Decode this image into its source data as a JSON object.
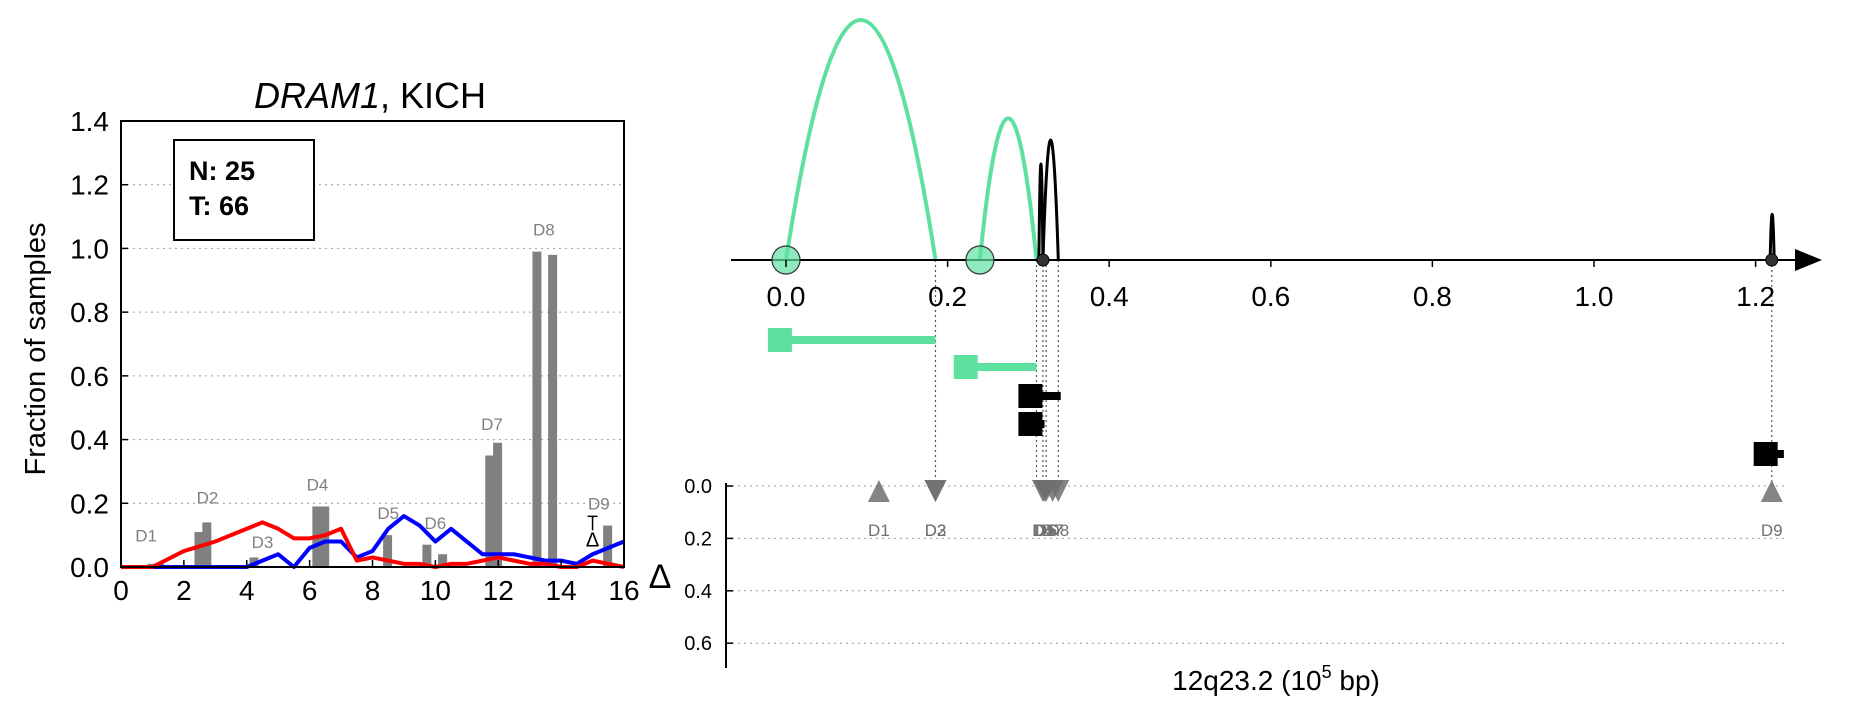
{
  "chart_data": [
    {
      "type": "bar",
      "title_gene": "DRAM1",
      "title_rest": ", KICH",
      "xlabel": "",
      "ylabel": "Fraction of samples",
      "xlim": [
        0,
        16
      ],
      "ylim": [
        0,
        1.4
      ],
      "x_ticks": [
        "0",
        "2",
        "4",
        "6",
        "8",
        "10",
        "12",
        "14",
        "16"
      ],
      "y_ticks": [
        "0.0",
        "0.2",
        "0.4",
        "0.6",
        "0.8",
        "1.0",
        "1.2",
        "1.4"
      ],
      "grid": "horizontal dotted",
      "stats_box": {
        "n_label": "N: 25",
        "t_label": "T: 66"
      },
      "bars": [
        {
          "x": 0.98,
          "value": 0.01
        },
        {
          "x": 1.23,
          "value": 0.01
        },
        {
          "x": 2.48,
          "value": 0.11
        },
        {
          "x": 2.73,
          "value": 0.14
        },
        {
          "x": 4.23,
          "value": 0.03
        },
        {
          "x": 6.23,
          "value": 0.19
        },
        {
          "x": 6.48,
          "value": 0.19
        },
        {
          "x": 8.48,
          "value": 0.1
        },
        {
          "x": 9.73,
          "value": 0.07
        },
        {
          "x": 10.23,
          "value": 0.04
        },
        {
          "x": 11.73,
          "value": 0.35
        },
        {
          "x": 11.98,
          "value": 0.39
        },
        {
          "x": 13.23,
          "value": 0.99
        },
        {
          "x": 13.73,
          "value": 0.98
        },
        {
          "x": 15.48,
          "value": 0.13
        }
      ],
      "bar_labels": [
        {
          "text": "D1",
          "x": 0.8,
          "y": 0.08
        },
        {
          "text": "D2",
          "x": 2.75,
          "y": 0.2
        },
        {
          "text": "D3",
          "x": 4.5,
          "y": 0.06
        },
        {
          "text": "D4",
          "x": 6.25,
          "y": 0.24
        },
        {
          "text": "D5",
          "x": 8.5,
          "y": 0.15
        },
        {
          "text": "D6",
          "x": 10.0,
          "y": 0.12
        },
        {
          "text": "D7",
          "x": 11.8,
          "y": 0.43
        },
        {
          "text": "D8",
          "x": 13.45,
          "y": 1.04
        },
        {
          "text": "D9",
          "x": 15.2,
          "y": 0.18
        }
      ],
      "delta_marker": {
        "text": "Δ",
        "x": 15.0,
        "y": 0.09
      },
      "series": [
        {
          "color": "#0000ff",
          "x": [
            0,
            1,
            2,
            3,
            4,
            4.5,
            5,
            5.5,
            6,
            6.5,
            7,
            7.5,
            8,
            8.5,
            9,
            9.5,
            10,
            10.5,
            11,
            11.5,
            12,
            12.5,
            13,
            13.5,
            14,
            14.5,
            15,
            15.5,
            16
          ],
          "y": [
            0,
            0,
            0,
            0,
            0,
            0.02,
            0.04,
            0.0,
            0.06,
            0.08,
            0.08,
            0.03,
            0.05,
            0.12,
            0.16,
            0.13,
            0.08,
            0.12,
            0.08,
            0.04,
            0.04,
            0.04,
            0.03,
            0.02,
            0.02,
            0.01,
            0.04,
            0.06,
            0.08
          ]
        },
        {
          "color": "#ff0000",
          "x": [
            0,
            1,
            2,
            3,
            4,
            4.5,
            5,
            5.5,
            6,
            6.5,
            7,
            7.5,
            8,
            8.5,
            9,
            9.5,
            10,
            10.5,
            11,
            11.5,
            12,
            12.5,
            13,
            13.5,
            14,
            14.5,
            15,
            15.5,
            16
          ],
          "y": [
            0,
            0,
            0.05,
            0.08,
            0.12,
            0.14,
            0.12,
            0.09,
            0.09,
            0.1,
            0.12,
            0.02,
            0.03,
            0.02,
            0.01,
            0.01,
            0.0,
            0.01,
            0.01,
            0.02,
            0.03,
            0.02,
            0.01,
            0.01,
            0.0,
            0.0,
            0.02,
            0.01,
            0.0
          ]
        }
      ]
    },
    {
      "type": "genomic-structure",
      "xlabel_prefix": "12q23.2 (10",
      "xlabel_exp": "5",
      "xlabel_suffix": " bp)",
      "xlim": [
        -0.07,
        1.3
      ],
      "x_ticks": [
        "0.0",
        "0.2",
        "0.4",
        "0.6",
        "0.8",
        "1.0",
        "1.2"
      ],
      "delta_label": "Δ",
      "delta_ticks": [
        "0.0",
        "0.2",
        "0.4",
        "0.6"
      ],
      "colors": {
        "green": "#5ee0a0",
        "black": "#000000",
        "gray": "#6e6e6e"
      },
      "arcs": [
        {
          "start": 0.0,
          "end": 0.185,
          "height": 1.0,
          "color": "green"
        },
        {
          "start": 0.24,
          "end": 0.31,
          "height": 0.59,
          "color": "green"
        },
        {
          "start": 0.318,
          "end": 0.337,
          "height": 0.5,
          "color": "black"
        },
        {
          "start": 0.313,
          "end": 0.318,
          "height": 0.4,
          "color": "black"
        },
        {
          "start": 1.218,
          "end": 1.223,
          "height": 0.19,
          "color": "black"
        }
      ],
      "axis_circles": [
        {
          "x": 0.0,
          "color": "green"
        },
        {
          "x": 0.24,
          "color": "green"
        },
        {
          "x": 0.318,
          "color": "black"
        },
        {
          "x": 1.22,
          "color": "black"
        }
      ],
      "transcripts": [
        {
          "start": -0.01,
          "end": 0.185,
          "row": 0,
          "color": "green"
        },
        {
          "start": 0.22,
          "end": 0.31,
          "row": 1,
          "color": "green"
        },
        {
          "start": 0.3,
          "end": 0.34,
          "row": 2,
          "color": "black"
        },
        {
          "start": 0.3,
          "end": 0.32,
          "row": 3,
          "color": "black"
        },
        {
          "start": 1.21,
          "end": 1.235,
          "row": 4,
          "color": "black"
        }
      ],
      "dotted_links": [
        0.185,
        0.31,
        0.318,
        0.322,
        0.337,
        1.22
      ],
      "markers": [
        {
          "label": "D1",
          "x": 0.115,
          "dir": "up"
        },
        {
          "label": "D2",
          "x": 0.185,
          "dir": "down"
        },
        {
          "label": "D3",
          "x": 0.185,
          "dir": "down"
        },
        {
          "label": "D4",
          "x": 0.318,
          "dir": "down"
        },
        {
          "label": "D5",
          "x": 0.32,
          "dir": "down"
        },
        {
          "label": "D6",
          "x": 0.322,
          "dir": "down"
        },
        {
          "label": "D7",
          "x": 0.33,
          "dir": "down"
        },
        {
          "label": "D8",
          "x": 0.337,
          "dir": "down"
        },
        {
          "label": "D9",
          "x": 1.22,
          "dir": "up"
        }
      ]
    }
  ]
}
